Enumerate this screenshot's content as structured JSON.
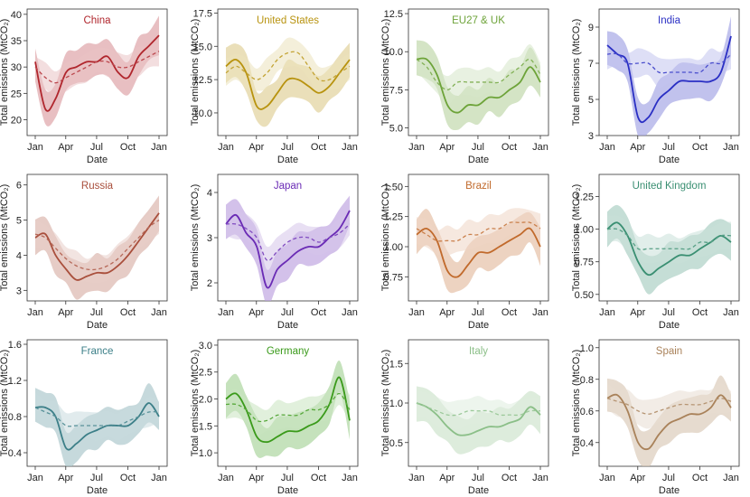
{
  "figure": {
    "xlabel": "Date",
    "ylabel": "Total emissions (MtCO₂)",
    "x_ticks": [
      "Jan",
      "Apr",
      "Jul",
      "Oct",
      "Jan"
    ],
    "x_tick_days": [
      0,
      90,
      181,
      273,
      365
    ]
  },
  "chart_data": [
    {
      "type": "line",
      "title": "China",
      "color": "#b0262d",
      "xlabel": "Date",
      "ylabel": "Total emissions (MtCO₂)",
      "ylim": [
        17,
        41
      ],
      "yticks": [
        20,
        25,
        30,
        35,
        40
      ],
      "x_days": [
        0,
        30,
        60,
        91,
        121,
        152,
        182,
        213,
        244,
        274,
        305,
        335,
        365
      ],
      "series": [
        {
          "style": "solid",
          "values": [
            31,
            22,
            24,
            29,
            30,
            31,
            31,
            32,
            29,
            28,
            32,
            34,
            36
          ]
        },
        {
          "style": "dashed",
          "values": [
            30,
            28,
            27,
            28,
            29,
            30,
            31,
            31,
            30,
            30,
            31,
            32,
            33
          ]
        }
      ]
    },
    {
      "type": "line",
      "title": "United States",
      "color": "#b8930f",
      "xlabel": "Date",
      "ylabel": "Total emissions (MtCO₂)",
      "ylim": [
        8.3,
        17.8
      ],
      "yticks": [
        10.0,
        12.5,
        15.0,
        17.5
      ],
      "x_days": [
        0,
        30,
        60,
        91,
        121,
        152,
        182,
        213,
        244,
        274,
        305,
        335,
        365
      ],
      "series": [
        {
          "style": "solid",
          "values": [
            13.5,
            14.0,
            13.0,
            10.5,
            10.5,
            11.5,
            12.5,
            12.5,
            12.0,
            11.5,
            12.0,
            13.0,
            14.0
          ]
        },
        {
          "style": "dashed",
          "values": [
            13.0,
            13.5,
            13.0,
            12.5,
            13.0,
            14.0,
            14.5,
            14.5,
            13.5,
            12.5,
            12.5,
            13.0,
            13.5
          ]
        }
      ]
    },
    {
      "type": "line",
      "title": "EU27 & UK",
      "color": "#6da339",
      "xlabel": "Date",
      "ylabel": "Total emissions (MtCO₂)",
      "ylim": [
        4.5,
        12.8
      ],
      "yticks": [
        5.0,
        7.5,
        10.0,
        12.5
      ],
      "x_days": [
        0,
        30,
        60,
        91,
        121,
        152,
        182,
        213,
        244,
        274,
        305,
        335,
        365
      ],
      "series": [
        {
          "style": "solid",
          "values": [
            9.5,
            9.5,
            8.5,
            6.5,
            6.0,
            6.5,
            6.5,
            7.0,
            7.0,
            7.5,
            8.0,
            9.0,
            8.0
          ]
        },
        {
          "style": "dashed",
          "values": [
            9.5,
            9.0,
            8.0,
            7.5,
            8.0,
            8.0,
            8.0,
            8.0,
            8.0,
            8.5,
            9.0,
            9.5,
            8.5
          ]
        }
      ]
    },
    {
      "type": "line",
      "title": "India",
      "color": "#2a2fc4",
      "xlabel": "Date",
      "ylabel": "Total emissions (MtCO₂)",
      "ylim": [
        3,
        10
      ],
      "yticks": [
        3,
        5,
        7,
        9
      ],
      "x_days": [
        0,
        30,
        60,
        91,
        121,
        152,
        182,
        213,
        244,
        274,
        305,
        335,
        365
      ],
      "series": [
        {
          "style": "solid",
          "values": [
            8.0,
            7.5,
            7.0,
            4.0,
            4.0,
            5.0,
            5.5,
            6.0,
            6.0,
            6.0,
            6.0,
            6.5,
            8.5
          ]
        },
        {
          "style": "dashed",
          "values": [
            7.5,
            7.5,
            7.0,
            7.0,
            7.0,
            6.5,
            6.5,
            6.5,
            6.5,
            6.5,
            7.0,
            7.0,
            7.5
          ]
        }
      ]
    },
    {
      "type": "line",
      "title": "Russia",
      "color": "#a94f3c",
      "xlabel": "Date",
      "ylabel": "Total emissions (MtCO₂)",
      "ylim": [
        2.7,
        6.3
      ],
      "yticks": [
        3,
        4,
        5,
        6
      ],
      "x_days": [
        0,
        30,
        60,
        91,
        121,
        152,
        182,
        213,
        244,
        274,
        305,
        335,
        365
      ],
      "series": [
        {
          "style": "solid",
          "values": [
            4.5,
            4.6,
            4.0,
            3.6,
            3.3,
            3.4,
            3.5,
            3.5,
            3.7,
            4.0,
            4.4,
            4.8,
            5.2
          ]
        },
        {
          "style": "dashed",
          "values": [
            4.6,
            4.5,
            4.2,
            3.9,
            3.7,
            3.6,
            3.6,
            3.7,
            3.9,
            4.2,
            4.5,
            4.8,
            5.0
          ]
        }
      ]
    },
    {
      "type": "line",
      "title": "Japan",
      "color": "#6a2bb5",
      "xlabel": "Date",
      "ylabel": "Total emissions (MtCO₂)",
      "ylim": [
        1.6,
        4.4
      ],
      "yticks": [
        2,
        3,
        4
      ],
      "x_days": [
        0,
        30,
        60,
        91,
        121,
        152,
        182,
        213,
        244,
        274,
        305,
        335,
        365
      ],
      "series": [
        {
          "style": "solid",
          "values": [
            3.3,
            3.5,
            3.1,
            2.8,
            1.9,
            2.3,
            2.5,
            2.7,
            2.8,
            2.8,
            3.0,
            3.2,
            3.6
          ]
        },
        {
          "style": "dashed",
          "values": [
            3.3,
            3.3,
            3.2,
            3.0,
            2.5,
            2.7,
            2.9,
            3.0,
            3.0,
            2.9,
            3.0,
            3.1,
            3.3
          ]
        }
      ]
    },
    {
      "type": "line",
      "title": "Brazil",
      "color": "#c16a2c",
      "xlabel": "Date",
      "ylabel": "Total emissions (MtCO₂)",
      "ylim": [
        0.55,
        1.6
      ],
      "yticks": [
        0.75,
        1.0,
        1.25,
        1.5
      ],
      "x_days": [
        0,
        30,
        60,
        91,
        121,
        152,
        182,
        213,
        244,
        274,
        305,
        335,
        365
      ],
      "series": [
        {
          "style": "solid",
          "values": [
            1.1,
            1.15,
            1.05,
            0.8,
            0.75,
            0.85,
            0.95,
            0.95,
            1.0,
            1.05,
            1.1,
            1.15,
            1.0
          ]
        },
        {
          "style": "dashed",
          "values": [
            1.15,
            1.1,
            1.05,
            1.05,
            1.05,
            1.1,
            1.1,
            1.15,
            1.15,
            1.2,
            1.2,
            1.2,
            1.15
          ]
        }
      ]
    },
    {
      "type": "line",
      "title": "United Kingdom",
      "color": "#3a8f72",
      "xlabel": "Date",
      "ylabel": "Total emissions (MtCO₂)",
      "ylim": [
        0.45,
        1.42
      ],
      "yticks": [
        0.5,
        0.75,
        1.0,
        1.25
      ],
      "x_days": [
        0,
        30,
        60,
        91,
        121,
        152,
        182,
        213,
        244,
        274,
        305,
        335,
        365
      ],
      "series": [
        {
          "style": "solid",
          "values": [
            1.0,
            1.05,
            0.95,
            0.75,
            0.65,
            0.7,
            0.75,
            0.8,
            0.8,
            0.85,
            0.9,
            0.95,
            0.9
          ]
        },
        {
          "style": "dashed",
          "values": [
            1.0,
            1.0,
            0.95,
            0.85,
            0.85,
            0.85,
            0.85,
            0.85,
            0.85,
            0.9,
            0.9,
            0.95,
            0.95
          ]
        }
      ]
    },
    {
      "type": "line",
      "title": "France",
      "color": "#3c7f88",
      "xlabel": "Date",
      "ylabel": "Total emissions (MtCO₂)",
      "ylim": [
        0.25,
        1.65
      ],
      "yticks": [
        0.4,
        0.8,
        1.2,
        1.6
      ],
      "x_days": [
        0,
        30,
        60,
        91,
        121,
        152,
        182,
        213,
        244,
        274,
        305,
        335,
        365
      ],
      "series": [
        {
          "style": "solid",
          "values": [
            0.9,
            0.9,
            0.8,
            0.45,
            0.5,
            0.6,
            0.65,
            0.7,
            0.7,
            0.7,
            0.8,
            0.95,
            0.8
          ]
        },
        {
          "style": "dashed",
          "values": [
            0.9,
            0.85,
            0.8,
            0.7,
            0.7,
            0.7,
            0.7,
            0.7,
            0.7,
            0.75,
            0.8,
            0.85,
            0.85
          ]
        }
      ]
    },
    {
      "type": "line",
      "title": "Germany",
      "color": "#3a9a1a",
      "xlabel": "Date",
      "ylabel": "Total emissions (MtCO₂)",
      "ylim": [
        0.75,
        3.1
      ],
      "yticks": [
        1.0,
        1.5,
        2.0,
        2.5,
        3.0
      ],
      "x_days": [
        0,
        30,
        60,
        91,
        121,
        152,
        182,
        213,
        244,
        274,
        305,
        335,
        365
      ],
      "series": [
        {
          "style": "solid",
          "values": [
            2.0,
            2.1,
            1.8,
            1.3,
            1.2,
            1.3,
            1.4,
            1.4,
            1.5,
            1.6,
            1.9,
            2.4,
            1.6
          ]
        },
        {
          "style": "dashed",
          "values": [
            1.9,
            1.9,
            1.8,
            1.6,
            1.6,
            1.7,
            1.7,
            1.7,
            1.8,
            1.8,
            1.9,
            2.1,
            1.8
          ]
        }
      ]
    },
    {
      "type": "line",
      "title": "Italy",
      "color": "#8bbf88",
      "xlabel": "Date",
      "ylabel": "Total emissions (MtCO₂)",
      "ylim": [
        0.2,
        1.8
      ],
      "yticks": [
        0.5,
        1.0,
        1.5
      ],
      "x_days": [
        0,
        30,
        60,
        91,
        121,
        152,
        182,
        213,
        244,
        274,
        305,
        335,
        365
      ],
      "series": [
        {
          "style": "solid",
          "values": [
            1.0,
            0.95,
            0.85,
            0.7,
            0.6,
            0.6,
            0.65,
            0.7,
            0.7,
            0.75,
            0.8,
            0.95,
            0.85
          ]
        },
        {
          "style": "dashed",
          "values": [
            1.0,
            0.95,
            0.9,
            0.85,
            0.85,
            0.9,
            0.9,
            0.9,
            0.85,
            0.85,
            0.85,
            0.9,
            0.9
          ]
        }
      ]
    },
    {
      "type": "line",
      "title": "Spain",
      "color": "#a9825a",
      "xlabel": "Date",
      "ylabel": "Total emissions (MtCO₂)",
      "ylim": [
        0.25,
        1.05
      ],
      "yticks": [
        0.4,
        0.6,
        0.8,
        1.0
      ],
      "x_days": [
        0,
        30,
        60,
        91,
        121,
        152,
        182,
        213,
        244,
        274,
        305,
        335,
        365
      ],
      "series": [
        {
          "style": "solid",
          "values": [
            0.68,
            0.7,
            0.6,
            0.4,
            0.36,
            0.45,
            0.52,
            0.55,
            0.58,
            0.58,
            0.62,
            0.7,
            0.62
          ]
        },
        {
          "style": "dashed",
          "values": [
            0.68,
            0.66,
            0.64,
            0.6,
            0.58,
            0.6,
            0.62,
            0.64,
            0.64,
            0.64,
            0.66,
            0.68,
            0.66
          ]
        }
      ]
    }
  ]
}
